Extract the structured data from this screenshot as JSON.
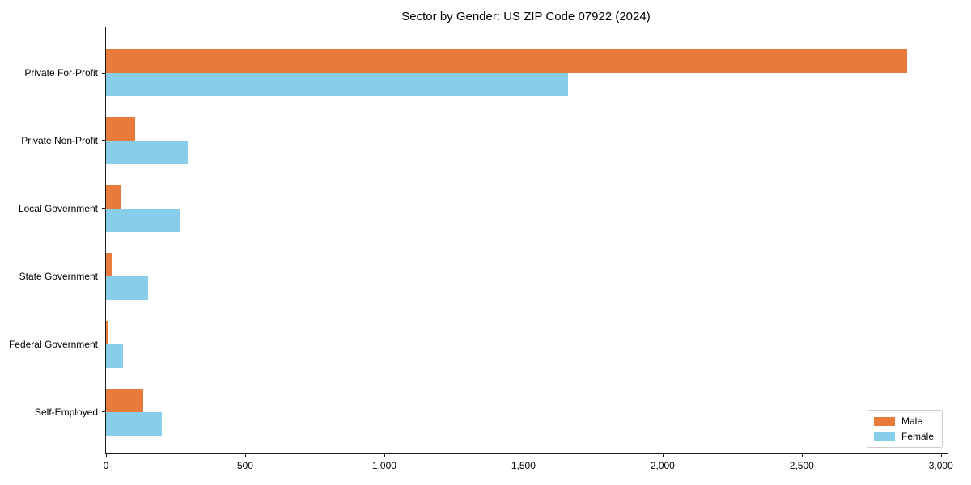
{
  "chart_data": {
    "type": "bar",
    "orientation": "horizontal",
    "title": "Sector by Gender: US ZIP Code 07922 (2024)",
    "categories": [
      "Private For-Profit",
      "Private Non-Profit",
      "Local Government",
      "State Government",
      "Federal Government",
      "Self-Employed"
    ],
    "series": [
      {
        "name": "Male",
        "color": "#e87a3c",
        "values": [
          2880,
          105,
          55,
          20,
          8,
          135
        ]
      },
      {
        "name": "Female",
        "color": "#87ceeb",
        "values": [
          1660,
          295,
          265,
          150,
          60,
          200
        ]
      }
    ],
    "xlabel": "",
    "ylabel": "",
    "xlim": [
      0,
      3024
    ],
    "x_ticks": [
      0,
      500,
      1000,
      1500,
      2000,
      2500,
      3000
    ],
    "x_tick_labels": [
      "0",
      "500",
      "1,000",
      "1,500",
      "2,000",
      "2,500",
      "3,000"
    ],
    "grid": false,
    "legend": {
      "position": "lower right"
    }
  }
}
